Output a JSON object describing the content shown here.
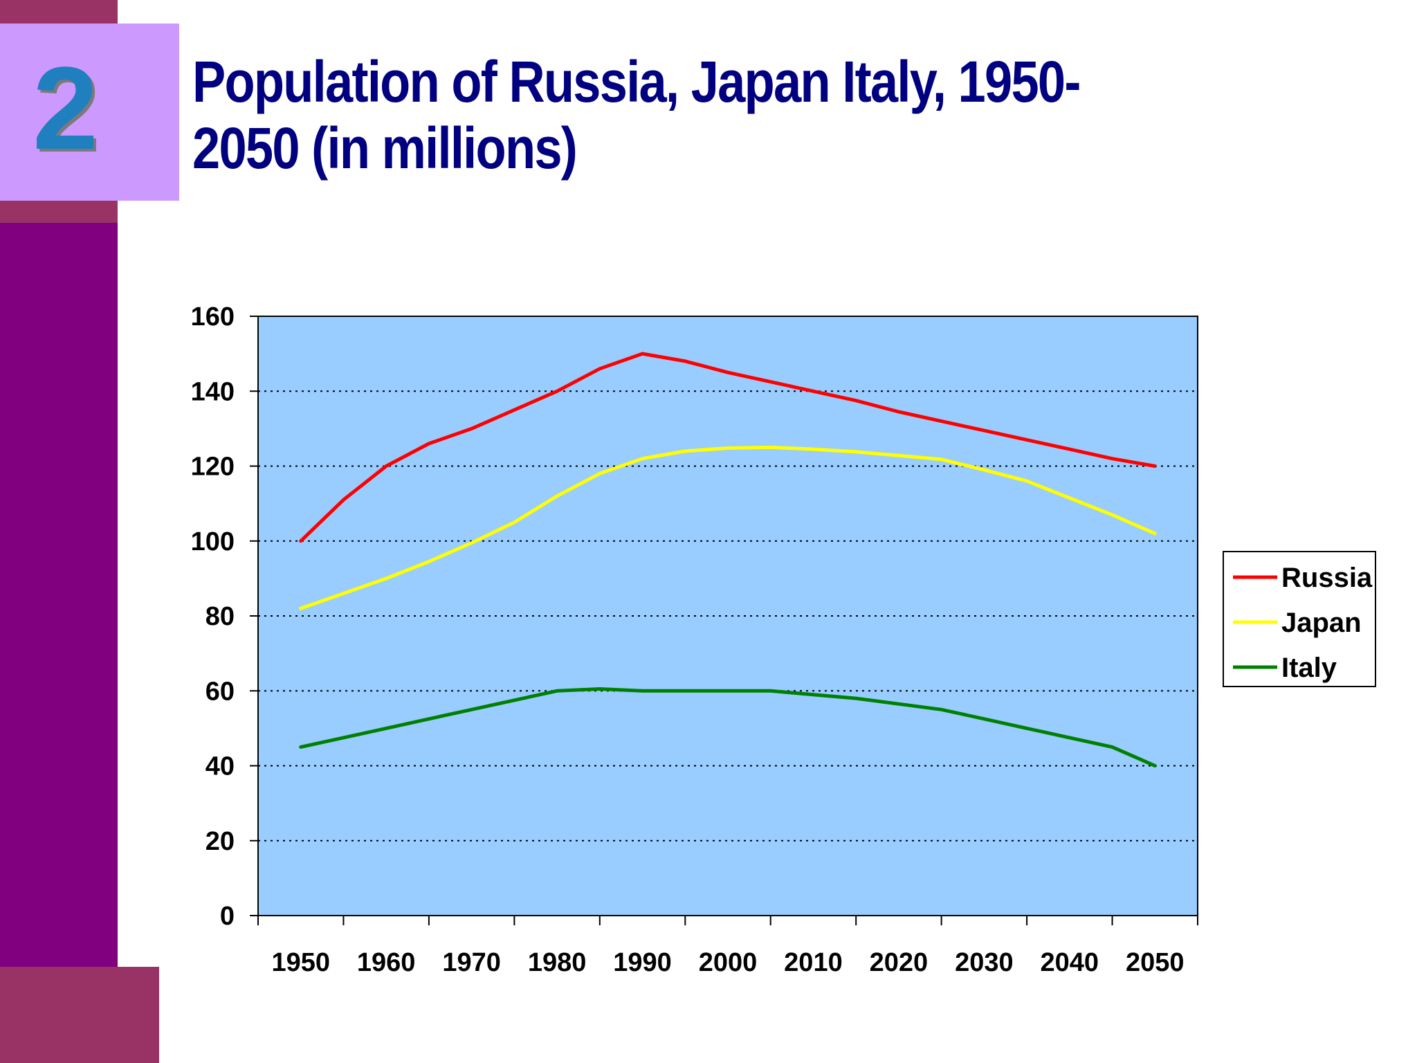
{
  "slide": {
    "number": "2",
    "title": "Population of Russia, Japan Italy, 1950-2050 (in millions)"
  },
  "colors": {
    "sidebar": "#800080",
    "sidebar_accent": "#993366",
    "badge": "#cc99ff",
    "title": "#000080",
    "plot_background": "#99ccff"
  },
  "chart_data": {
    "type": "line",
    "title": "Population of Russia, Japan Italy, 1950-2050 (in millions)",
    "xlabel": "",
    "ylabel": "",
    "x": [
      1950,
      1955,
      1960,
      1965,
      1970,
      1975,
      1980,
      1985,
      1990,
      1995,
      2000,
      2005,
      2010,
      2015,
      2020,
      2025,
      2030,
      2035,
      2040,
      2045,
      2050
    ],
    "x_ticks": [
      "1950",
      "1960",
      "1970",
      "1980",
      "1990",
      "2000",
      "2010",
      "2020",
      "2030",
      "2040",
      "2050"
    ],
    "xlim": [
      1945,
      2055
    ],
    "ylim": [
      0,
      160
    ],
    "y_ticks": [
      "0",
      "20",
      "40",
      "60",
      "80",
      "100",
      "120",
      "140",
      "160"
    ],
    "grid": "horizontal dotted",
    "legend": "right",
    "series": [
      {
        "name": "Russia",
        "color": "#ff0000",
        "values": [
          100,
          111,
          120,
          126,
          130,
          135,
          140,
          146,
          150,
          148,
          145,
          142.5,
          140,
          137.5,
          134.5,
          132,
          129.5,
          127,
          124.5,
          122,
          120
        ]
      },
      {
        "name": "Japan",
        "color": "#ffff00",
        "values": [
          82,
          86,
          90,
          94.5,
          99.5,
          105,
          112,
          118,
          122,
          124,
          124.8,
          125,
          124.5,
          123.8,
          122.8,
          121.8,
          119,
          116,
          111.5,
          107,
          102
        ]
      },
      {
        "name": "Italy",
        "color": "#008000",
        "values": [
          45,
          47.5,
          50,
          52.5,
          55,
          57.5,
          60,
          60.5,
          60,
          60,
          60,
          60,
          59,
          58,
          56.5,
          55,
          52.5,
          50,
          47.5,
          45,
          40
        ]
      }
    ]
  }
}
